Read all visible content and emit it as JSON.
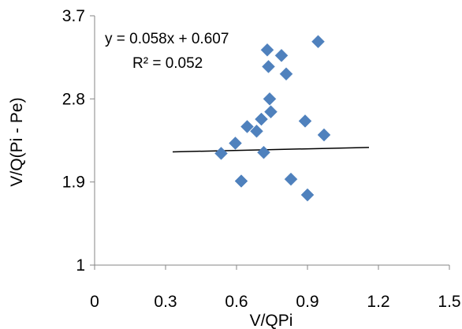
{
  "chart_data": {
    "type": "scatter",
    "xlabel": "V/QPi",
    "ylabel": "V/Q(Pi - Pe)",
    "xlim": [
      0,
      1.5
    ],
    "ylim": [
      1,
      3.7
    ],
    "x_ticks": [
      "0",
      "0.3",
      "0.6",
      "0.9",
      "1.2",
      "1.5"
    ],
    "y_ticks": [
      "1",
      "1.9",
      "2.8",
      "3.7"
    ],
    "x_tick_values": [
      0,
      0.3,
      0.6,
      0.9,
      1.2,
      1.5
    ],
    "y_tick_values": [
      1,
      1.9,
      2.8,
      3.7
    ],
    "grid": false,
    "marker": "diamond",
    "marker_color": "#4F81BD",
    "trendline_color": "#000000",
    "series": [
      {
        "points": [
          {
            "x": 0.535,
            "y": 2.21
          },
          {
            "x": 0.595,
            "y": 2.32
          },
          {
            "x": 0.62,
            "y": 1.91
          },
          {
            "x": 0.645,
            "y": 2.5
          },
          {
            "x": 0.685,
            "y": 2.45
          },
          {
            "x": 0.705,
            "y": 2.58
          },
          {
            "x": 0.715,
            "y": 2.22
          },
          {
            "x": 0.73,
            "y": 3.33
          },
          {
            "x": 0.735,
            "y": 3.15
          },
          {
            "x": 0.74,
            "y": 2.8
          },
          {
            "x": 0.745,
            "y": 2.66
          },
          {
            "x": 0.79,
            "y": 3.27
          },
          {
            "x": 0.81,
            "y": 3.07
          },
          {
            "x": 0.83,
            "y": 1.93
          },
          {
            "x": 0.89,
            "y": 2.56
          },
          {
            "x": 0.9,
            "y": 1.76
          },
          {
            "x": 0.945,
            "y": 3.42
          },
          {
            "x": 0.97,
            "y": 2.41
          }
        ]
      }
    ],
    "trendline": {
      "slope": 0.058,
      "intercept": 0.607,
      "x_range": [
        0.33,
        1.16
      ]
    },
    "annotations": {
      "equation": "y = 0.058x + 0.607",
      "r_squared": "R² = 0.052"
    }
  }
}
